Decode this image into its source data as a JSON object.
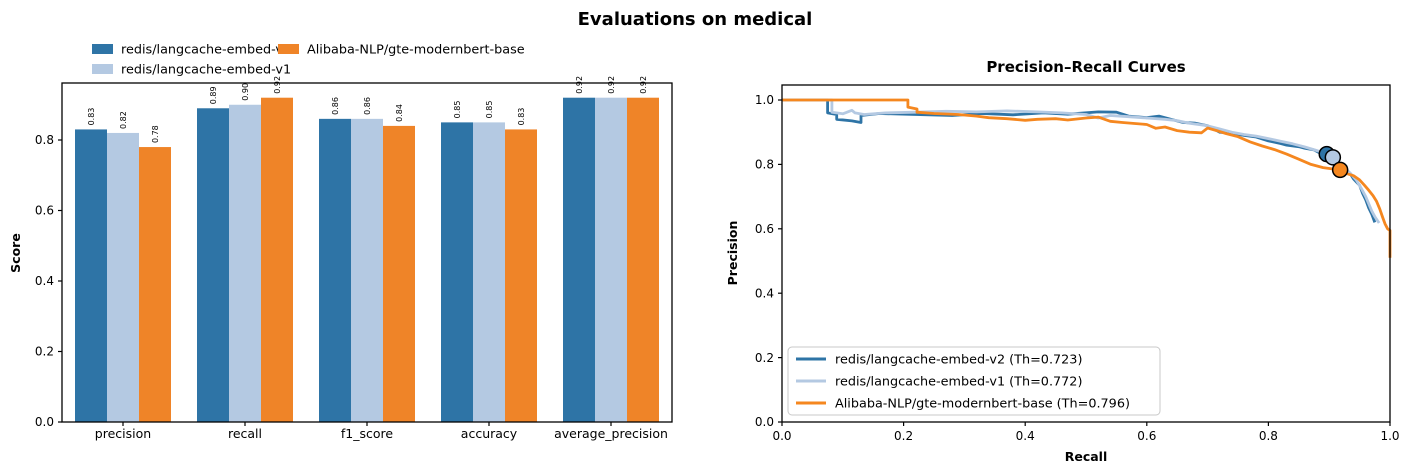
{
  "figure": {
    "title": "Evaluations on medical"
  },
  "chart_data": [
    {
      "type": "bar",
      "ylabel": "Score",
      "categories": [
        "precision",
        "recall",
        "f1_score",
        "accuracy",
        "average_precision"
      ],
      "yticks": [
        "0.0",
        "0.2",
        "0.4",
        "0.6",
        "0.8"
      ],
      "ylim": [
        0,
        0.962
      ],
      "grid": false,
      "legend_position": "above-plot upper-left, 2 columns",
      "series": [
        {
          "name": "redis/langcache-embed-v2",
          "color": "#2e74a6",
          "values": [
            0.83,
            0.89,
            0.86,
            0.85,
            0.92
          ],
          "labels": [
            "0.83",
            "0.89",
            "0.86",
            "0.85",
            "0.92"
          ]
        },
        {
          "name": "redis/langcache-embed-v1",
          "color": "#b4c9e2",
          "values": [
            0.82,
            0.9,
            0.86,
            0.85,
            0.92
          ],
          "labels": [
            "0.82",
            "0.90",
            "0.86",
            "0.85",
            "0.92"
          ]
        },
        {
          "name": "Alibaba-NLP/gte-modernbert-base",
          "color": "#ef8428",
          "values": [
            0.78,
            0.92,
            0.84,
            0.83,
            0.92
          ],
          "labels": [
            "0.78",
            "0.92",
            "0.84",
            "0.83",
            "0.92"
          ]
        }
      ]
    },
    {
      "type": "line",
      "title": "Precision–Recall Curves",
      "xlabel": "Recall",
      "ylabel": "Precision",
      "xticks": [
        "0.0",
        "0.2",
        "0.4",
        "0.6",
        "0.8",
        "1.0"
      ],
      "yticks": [
        "0.0",
        "0.2",
        "0.4",
        "0.6",
        "0.8",
        "1.0"
      ],
      "xlim": [
        0,
        1.0
      ],
      "ylim": [
        0,
        1.047
      ],
      "grid": false,
      "legend_position": "lower left",
      "series": [
        {
          "name": "redis/langcache-embed-v2",
          "legend_label": "redis/langcache-embed-v2 (Th=0.723)",
          "threshold": 0.723,
          "color": "#2e74a6",
          "marker": [
            0.896,
            0.832
          ],
          "points": [
            [
              0,
              1
            ],
            [
              0.075,
              1
            ],
            [
              0.075,
              0.96
            ],
            [
              0.09,
              0.955
            ],
            [
              0.09,
              0.94
            ],
            [
              0.115,
              0.935
            ],
            [
              0.13,
              0.93
            ],
            [
              0.13,
              0.952
            ],
            [
              0.16,
              0.958
            ],
            [
              0.22,
              0.955
            ],
            [
              0.28,
              0.952
            ],
            [
              0.33,
              0.958
            ],
            [
              0.38,
              0.954
            ],
            [
              0.43,
              0.96
            ],
            [
              0.47,
              0.956
            ],
            [
              0.52,
              0.963
            ],
            [
              0.55,
              0.962
            ],
            [
              0.57,
              0.95
            ],
            [
              0.6,
              0.945
            ],
            [
              0.62,
              0.95
            ],
            [
              0.64,
              0.94
            ],
            [
              0.66,
              0.93
            ],
            [
              0.68,
              0.928
            ],
            [
              0.7,
              0.92
            ],
            [
              0.72,
              0.9
            ],
            [
              0.74,
              0.897
            ],
            [
              0.76,
              0.89
            ],
            [
              0.78,
              0.885
            ],
            [
              0.8,
              0.873
            ],
            [
              0.82,
              0.865
            ],
            [
              0.83,
              0.86
            ],
            [
              0.85,
              0.855
            ],
            [
              0.86,
              0.85
            ],
            [
              0.875,
              0.845
            ],
            [
              0.885,
              0.835
            ],
            [
              0.896,
              0.832
            ],
            [
              0.905,
              0.81
            ],
            [
              0.915,
              0.8
            ],
            [
              0.925,
              0.785
            ],
            [
              0.935,
              0.77
            ],
            [
              0.94,
              0.755
            ],
            [
              0.95,
              0.735
            ],
            [
              0.955,
              0.71
            ],
            [
              0.96,
              0.69
            ],
            [
              0.965,
              0.665
            ],
            [
              0.97,
              0.645
            ],
            [
              0.975,
              0.62
            ]
          ]
        },
        {
          "name": "redis/langcache-embed-v1",
          "legend_label": "redis/langcache-embed-v1 (Th=0.772)",
          "threshold": 0.772,
          "color": "#b4c9e2",
          "marker": [
            0.906,
            0.822
          ],
          "points": [
            [
              0,
              1
            ],
            [
              0.082,
              1
            ],
            [
              0.082,
              0.962
            ],
            [
              0.1,
              0.957
            ],
            [
              0.115,
              0.968
            ],
            [
              0.12,
              0.96
            ],
            [
              0.135,
              0.955
            ],
            [
              0.17,
              0.96
            ],
            [
              0.22,
              0.962
            ],
            [
              0.27,
              0.965
            ],
            [
              0.32,
              0.963
            ],
            [
              0.37,
              0.966
            ],
            [
              0.42,
              0.963
            ],
            [
              0.46,
              0.96
            ],
            [
              0.5,
              0.955
            ],
            [
              0.52,
              0.944
            ],
            [
              0.54,
              0.952
            ],
            [
              0.57,
              0.948
            ],
            [
              0.6,
              0.944
            ],
            [
              0.63,
              0.94
            ],
            [
              0.65,
              0.936
            ],
            [
              0.67,
              0.928
            ],
            [
              0.7,
              0.92
            ],
            [
              0.72,
              0.91
            ],
            [
              0.74,
              0.9
            ],
            [
              0.76,
              0.893
            ],
            [
              0.78,
              0.888
            ],
            [
              0.8,
              0.88
            ],
            [
              0.82,
              0.872
            ],
            [
              0.84,
              0.864
            ],
            [
              0.86,
              0.854
            ],
            [
              0.88,
              0.843
            ],
            [
              0.895,
              0.832
            ],
            [
              0.906,
              0.822
            ],
            [
              0.915,
              0.805
            ],
            [
              0.925,
              0.79
            ],
            [
              0.935,
              0.772
            ],
            [
              0.945,
              0.75
            ],
            [
              0.953,
              0.725
            ],
            [
              0.96,
              0.7
            ],
            [
              0.965,
              0.678
            ],
            [
              0.97,
              0.655
            ],
            [
              0.975,
              0.638
            ],
            [
              0.982,
              0.618
            ]
          ]
        },
        {
          "name": "Alibaba-NLP/gte-modernbert-base",
          "legend_label": "Alibaba-NLP/gte-modernbert-base (Th=0.796)",
          "threshold": 0.796,
          "color": "#f5871f",
          "marker": [
            0.918,
            0.783
          ],
          "points": [
            [
              0,
              1
            ],
            [
              0.207,
              1
            ],
            [
              0.207,
              0.978
            ],
            [
              0.222,
              0.972
            ],
            [
              0.222,
              0.962
            ],
            [
              0.25,
              0.958
            ],
            [
              0.29,
              0.955
            ],
            [
              0.32,
              0.95
            ],
            [
              0.34,
              0.945
            ],
            [
              0.37,
              0.942
            ],
            [
              0.4,
              0.937
            ],
            [
              0.42,
              0.94
            ],
            [
              0.45,
              0.942
            ],
            [
              0.47,
              0.938
            ],
            [
              0.5,
              0.944
            ],
            [
              0.52,
              0.947
            ],
            [
              0.54,
              0.934
            ],
            [
              0.56,
              0.93
            ],
            [
              0.58,
              0.927
            ],
            [
              0.6,
              0.924
            ],
            [
              0.615,
              0.912
            ],
            [
              0.63,
              0.916
            ],
            [
              0.65,
              0.905
            ],
            [
              0.67,
              0.9
            ],
            [
              0.69,
              0.898
            ],
            [
              0.7,
              0.913
            ],
            [
              0.715,
              0.905
            ],
            [
              0.73,
              0.896
            ],
            [
              0.75,
              0.886
            ],
            [
              0.77,
              0.87
            ],
            [
              0.79,
              0.857
            ],
            [
              0.81,
              0.846
            ],
            [
              0.83,
              0.832
            ],
            [
              0.85,
              0.816
            ],
            [
              0.87,
              0.8
            ],
            [
              0.89,
              0.79
            ],
            [
              0.905,
              0.786
            ],
            [
              0.918,
              0.783
            ],
            [
              0.928,
              0.772
            ],
            [
              0.94,
              0.765
            ],
            [
              0.95,
              0.752
            ],
            [
              0.958,
              0.735
            ],
            [
              0.965,
              0.72
            ],
            [
              0.972,
              0.703
            ],
            [
              0.978,
              0.685
            ],
            [
              0.983,
              0.662
            ],
            [
              0.988,
              0.635
            ],
            [
              0.992,
              0.615
            ],
            [
              0.996,
              0.6
            ],
            [
              1.0,
              0.595
            ],
            [
              1.0,
              0.51
            ]
          ]
        }
      ]
    }
  ]
}
